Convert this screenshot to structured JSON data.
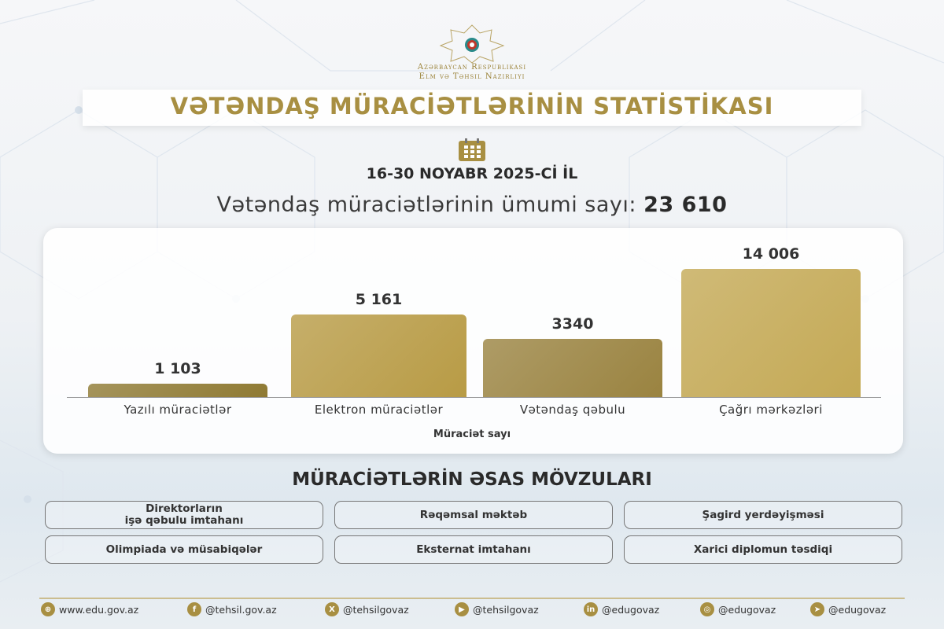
{
  "header": {
    "ministry_line1": "Azərbaycan Respublikası",
    "ministry_line2": "Elm və Təhsil Nazirliyi",
    "title": "VƏTƏNDAŞ MÜRACİƏTLƏRİNİN STATİSTİKASI",
    "date": "16-30 NOYABR 2025-Cİ İL",
    "total_label": "Vətəndaş müraciətlərinin ümumi sayı:",
    "total_value": "23 610"
  },
  "chart_data": {
    "type": "bar",
    "categories": [
      "Yazılı müraciətlər",
      "Elektron müraciətlər",
      "Vətəndaş qəbulu",
      "Çağrı mərkəzləri"
    ],
    "values": [
      1103,
      5161,
      3340,
      14006
    ],
    "value_labels": [
      "1 103",
      "5 161",
      "3340",
      "14 006"
    ],
    "xlabel": "Müraciət sayı",
    "ylabel": "",
    "grid": false,
    "colors": [
      "#8f7a33",
      "#b89b45",
      "#9a8340",
      "#c4a955"
    ]
  },
  "topics": {
    "title": "MÜRACİƏTLƏRİN ƏSAS MÖVZULARI",
    "items": [
      "Direktorların\nişə qəbulu imtahanı",
      "Rəqəmsal məktəb",
      "Şagird yerdəyişməsi",
      "Olimpiada və müsabiqələr",
      "Eksternat imtahanı",
      "Xarici diplomun təsdiqi"
    ]
  },
  "footer": {
    "links": [
      {
        "icon": "globe-icon",
        "text": "www.edu.gov.az"
      },
      {
        "icon": "facebook-icon",
        "text": "@tehsil.gov.az"
      },
      {
        "icon": "x-icon",
        "text": "@tehsilgovaz"
      },
      {
        "icon": "youtube-icon",
        "text": "@tehsilgovaz"
      },
      {
        "icon": "linkedin-icon",
        "text": "@edugovaz"
      },
      {
        "icon": "instagram-icon",
        "text": "@edugovaz"
      },
      {
        "icon": "telegram-icon",
        "text": "@edugovaz"
      }
    ]
  },
  "colors": {
    "gold": "#a88f42"
  }
}
